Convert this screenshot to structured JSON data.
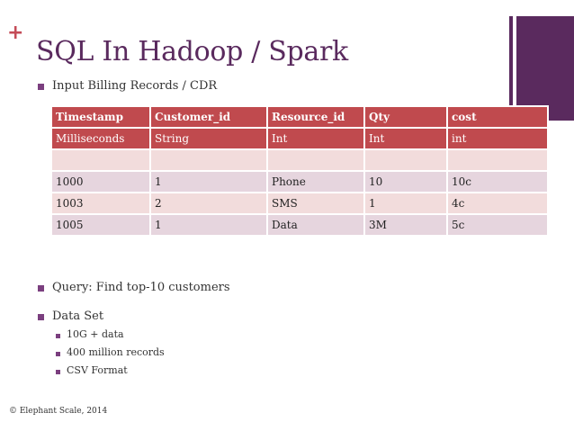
{
  "slide": {
    "plus": "+",
    "title": "SQL In Hadoop / Spark",
    "bullet_input": "Input Billing Records / CDR",
    "bullet_query": "Query: Find top-10 customers",
    "bullet_dataset": "Data Set",
    "dataset_items": [
      "10G + data",
      "400 million records",
      "CSV Format"
    ],
    "footer": "© Elephant Scale, 2014"
  },
  "table": {
    "headers": [
      "Timestamp",
      "Customer_id",
      "Resource_id",
      "Qty",
      "cost"
    ],
    "types": [
      "Milliseconds",
      "String",
      "Int",
      "Int",
      "int"
    ],
    "rows": [
      [
        "",
        "",
        "",
        "",
        ""
      ],
      [
        "1000",
        "1",
        "Phone",
        "10",
        "10c"
      ],
      [
        "1003",
        "2",
        "SMS",
        "1",
        "4c"
      ],
      [
        "1005",
        "1",
        "Data",
        "3M",
        "5c"
      ]
    ]
  },
  "colors": {
    "accent_purple": "#5a2a5e",
    "plus_red": "#c44c58",
    "table_header": "#c04a4e",
    "row_light_pink": "#f2dcdc",
    "row_light_mauve": "#e6d5de"
  }
}
